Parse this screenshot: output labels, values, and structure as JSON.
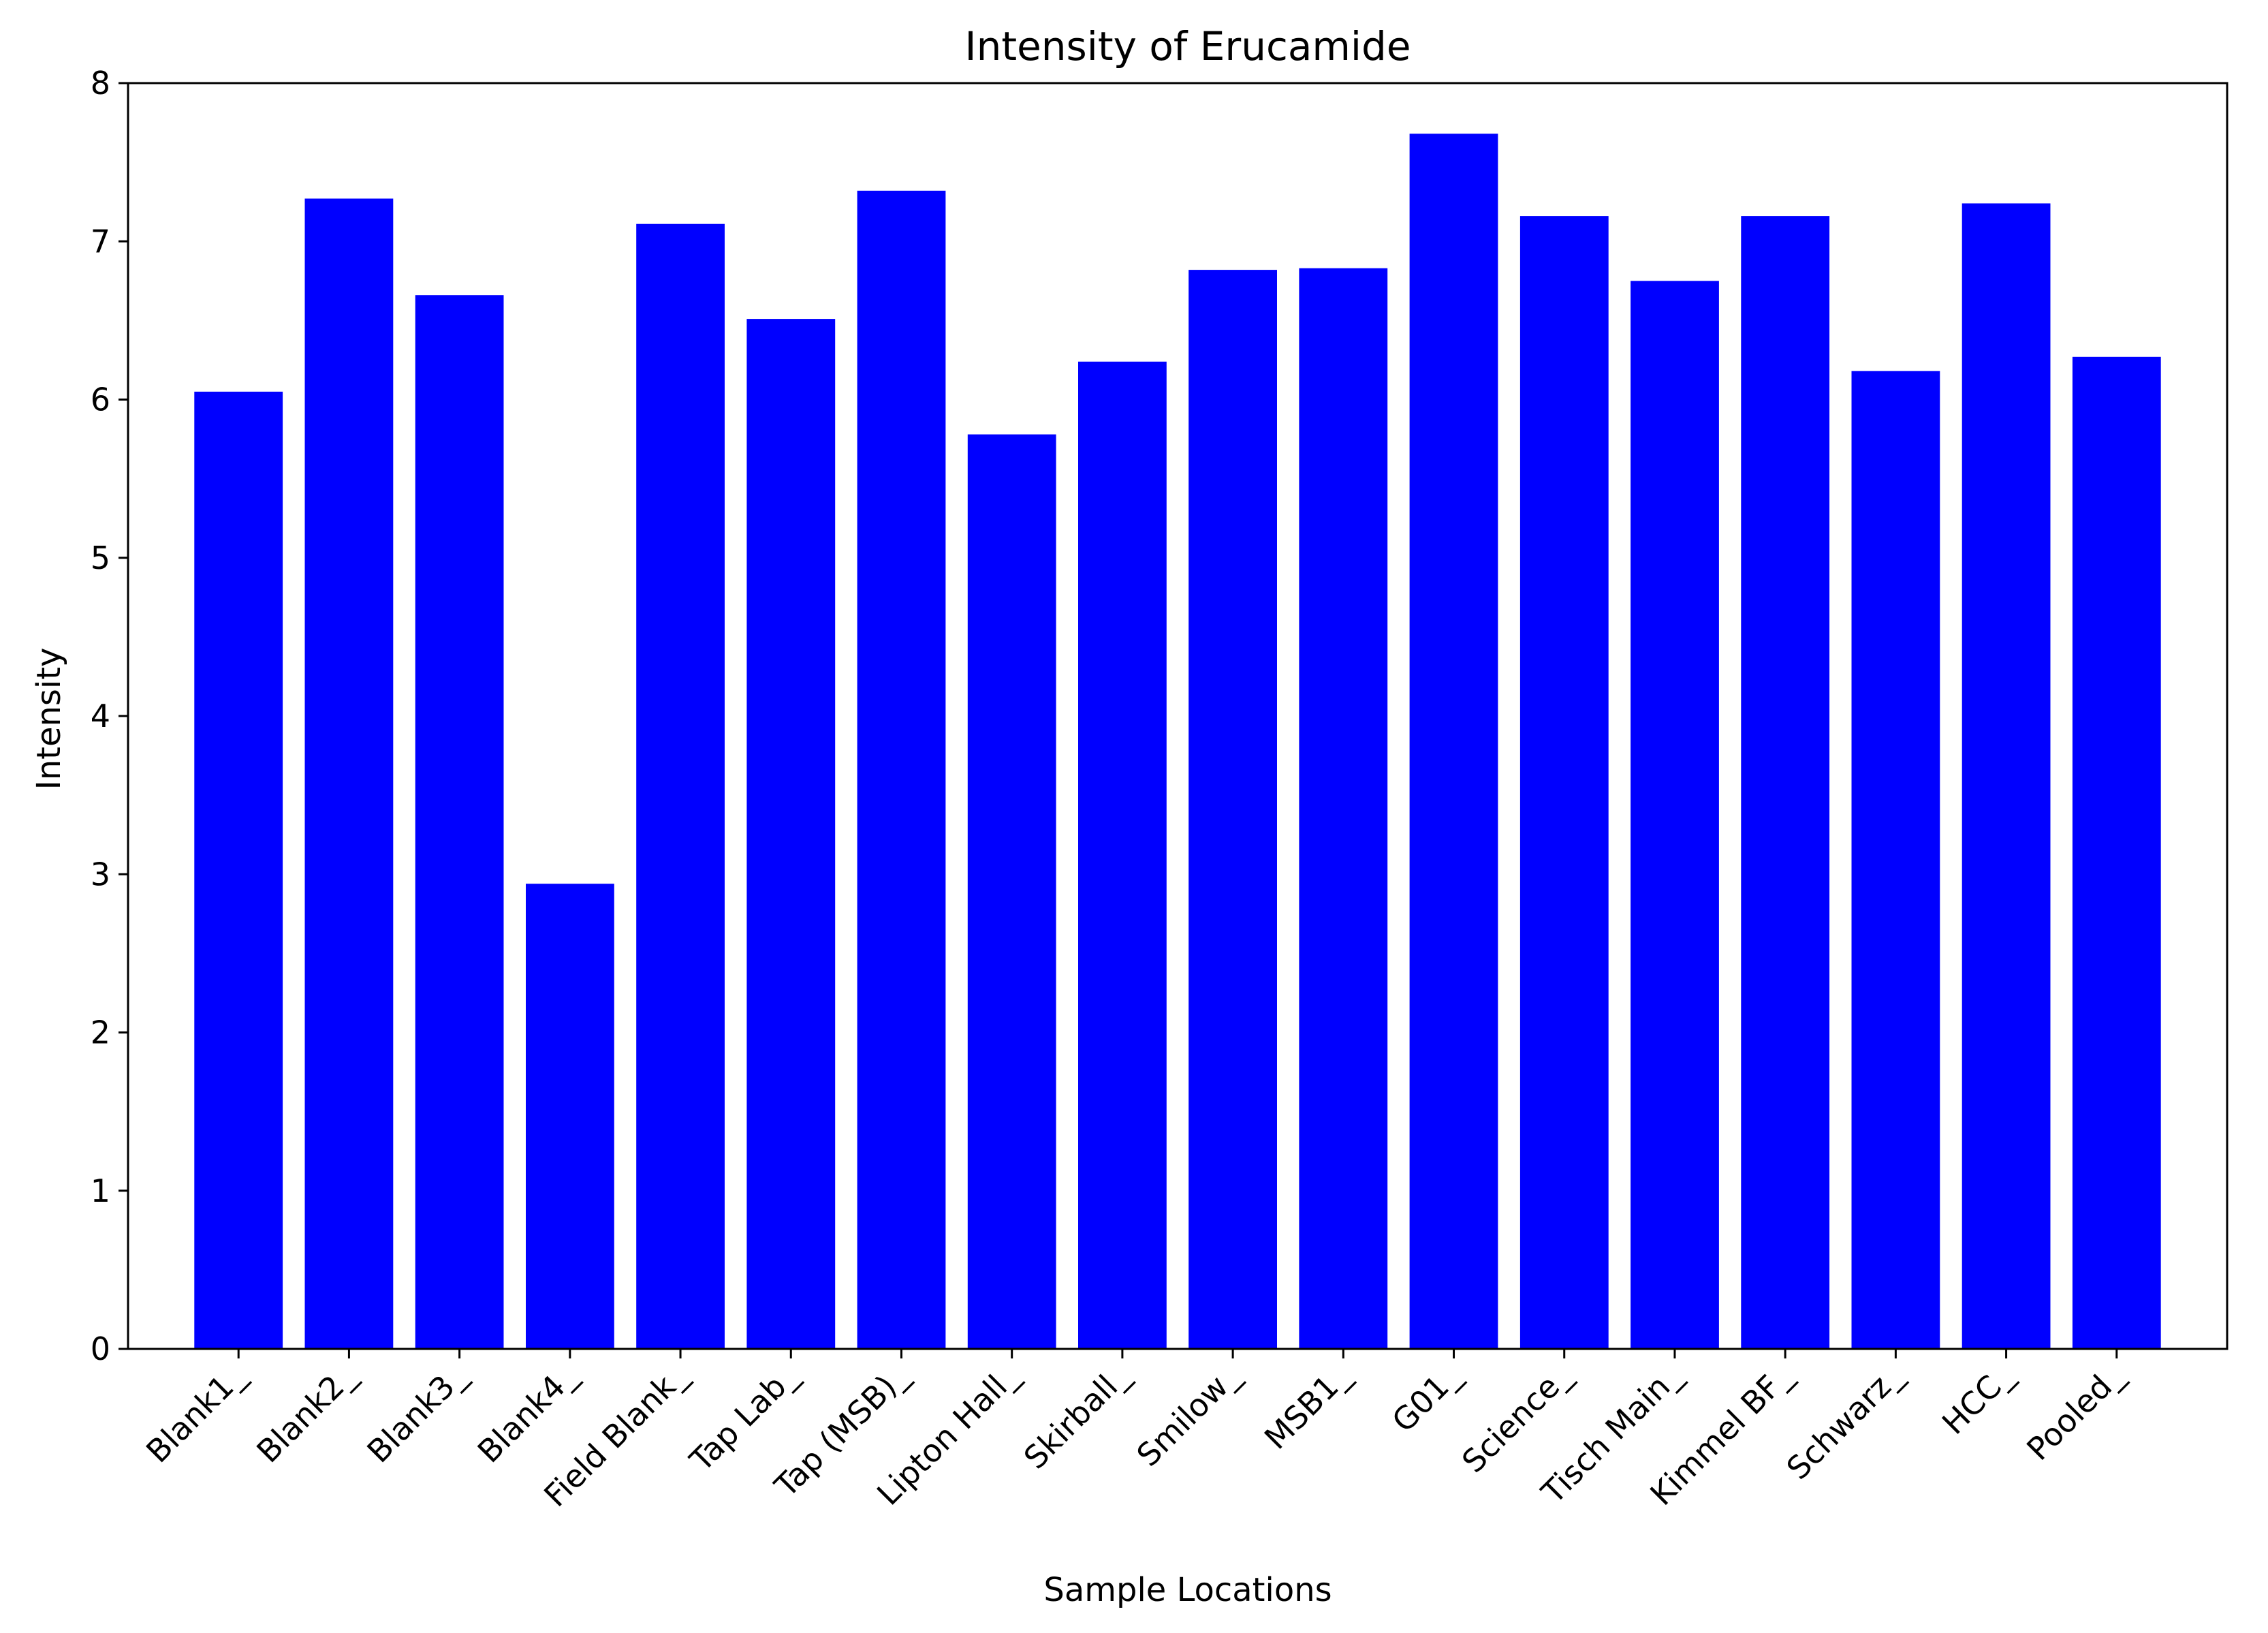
{
  "chart_data": {
    "type": "bar",
    "title": "Intensity of Erucamide",
    "xlabel": "Sample Locations",
    "ylabel": "Intensity",
    "ylim": [
      0,
      8
    ],
    "yticks": [
      "0",
      "1",
      "2",
      "3",
      "4",
      "5",
      "6",
      "7",
      "8"
    ],
    "categories": [
      "Blank1_",
      "Blank2_",
      "Blank3_",
      "Blank4_",
      "Field Blank_",
      "Tap Lab_",
      "Tap (MSB)_",
      "Lipton Hall_",
      "Skirball_",
      "Smilow_",
      "MSB1_",
      "G01_",
      "Science_",
      "Tisch Main_",
      "Kimmel BF_",
      "Schwarz_",
      "HCC_",
      "Pooled_"
    ],
    "values": [
      6.05,
      7.27,
      6.66,
      2.94,
      7.11,
      6.51,
      7.32,
      5.78,
      6.24,
      6.82,
      6.83,
      7.68,
      7.16,
      6.75,
      7.16,
      6.18,
      7.24,
      6.27
    ],
    "bar_color": "#0000ff",
    "grid": false,
    "legend": "none"
  }
}
